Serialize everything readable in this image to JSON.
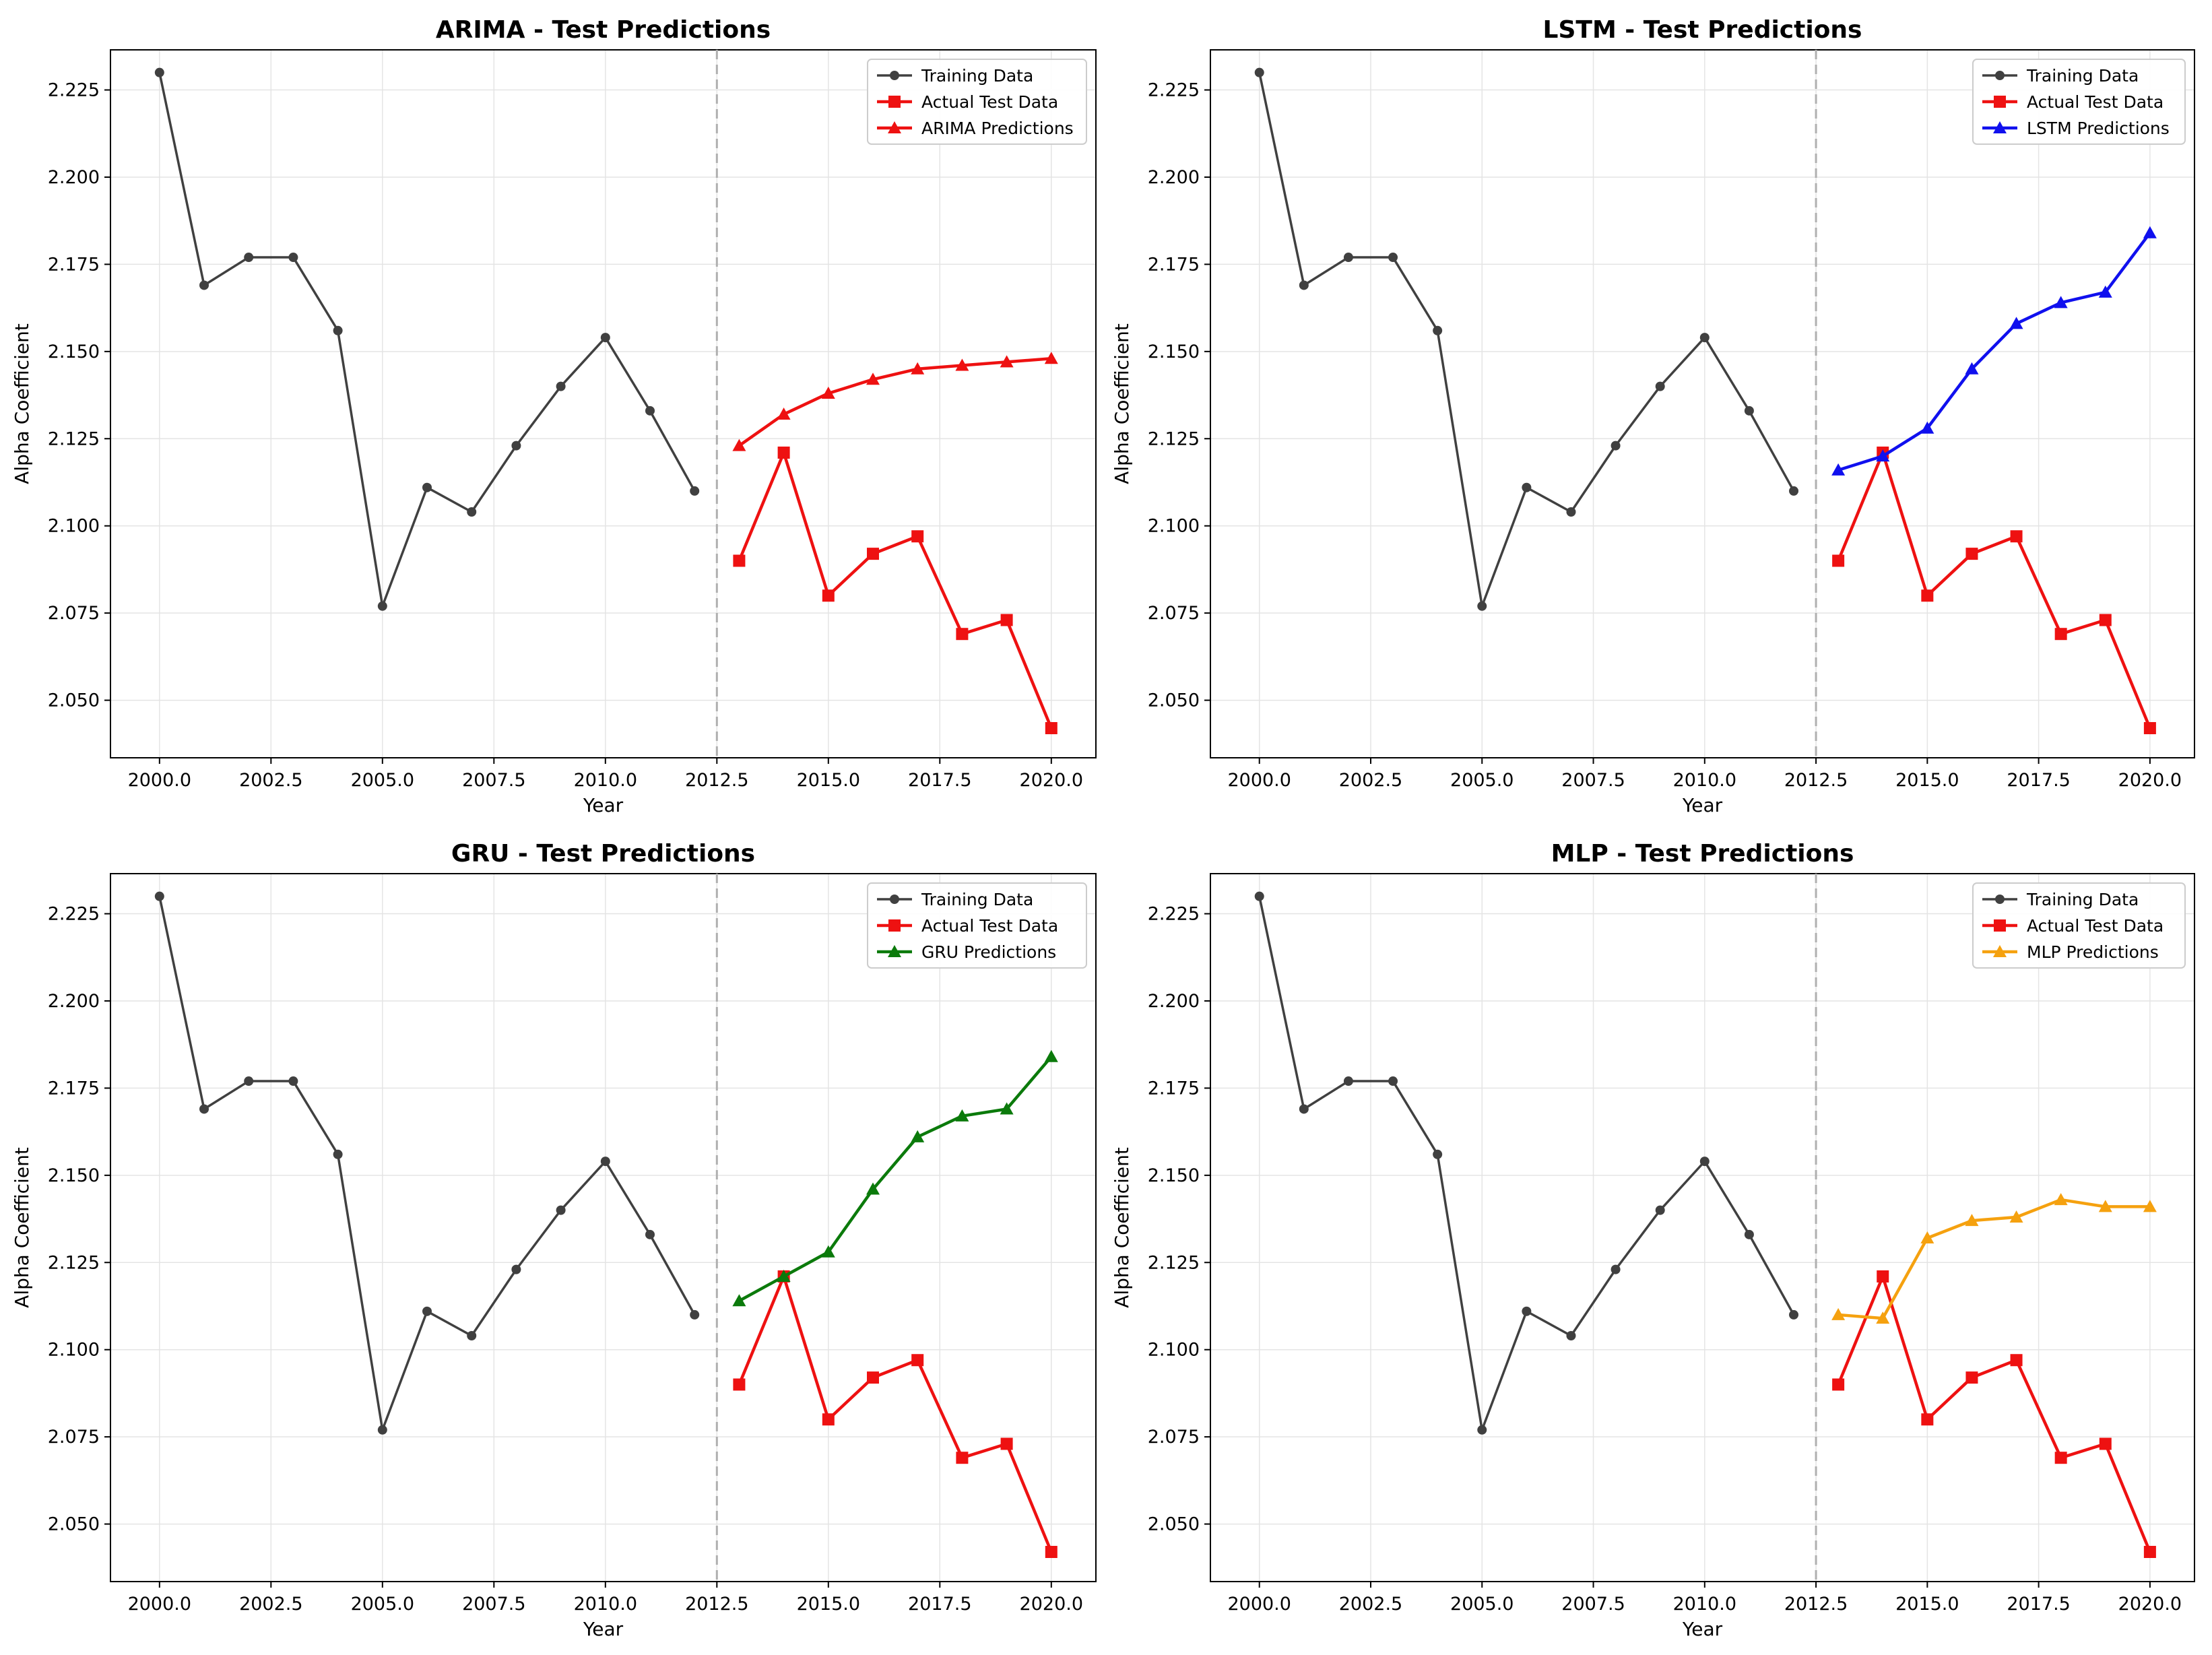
{
  "colors": {
    "training": "#404040",
    "actual": "#ee1111",
    "grid": "#e4e4e4",
    "split_line": "#b0b0b0"
  },
  "chart_data": [
    {
      "type": "line",
      "title": "ARIMA - Test Predictions",
      "xlabel": "Year",
      "ylabel": "Alpha Coefficient",
      "xlim": [
        1998.9,
        2021.0
      ],
      "ylim": [
        2.0335,
        2.2365
      ],
      "xticks": [
        "2000.0",
        "2002.5",
        "2005.0",
        "2007.5",
        "2010.0",
        "2012.5",
        "2015.0",
        "2017.5",
        "2020.0"
      ],
      "yticks": [
        "2.050",
        "2.075",
        "2.100",
        "2.125",
        "2.150",
        "2.175",
        "2.200",
        "2.225"
      ],
      "split_x": 2012.5,
      "grid": true,
      "legend_position": "top-right",
      "series": [
        {
          "name": "Training Data",
          "color": "#404040",
          "marker": "circle",
          "x": [
            2000,
            2001,
            2002,
            2003,
            2004,
            2005,
            2006,
            2007,
            2008,
            2009,
            2010,
            2011,
            2012
          ],
          "y": [
            2.23,
            2.169,
            2.177,
            2.177,
            2.156,
            2.077,
            2.111,
            2.104,
            2.123,
            2.14,
            2.154,
            2.133,
            2.11
          ]
        },
        {
          "name": "Actual Test Data",
          "color": "#ee1111",
          "marker": "square",
          "x": [
            2013,
            2014,
            2015,
            2016,
            2017,
            2018,
            2019,
            2020
          ],
          "y": [
            2.09,
            2.121,
            2.08,
            2.092,
            2.097,
            2.069,
            2.073,
            2.042
          ]
        },
        {
          "name": "ARIMA Predictions",
          "color": "#ee1111",
          "marker": "triangle",
          "x": [
            2013,
            2014,
            2015,
            2016,
            2017,
            2018,
            2019,
            2020
          ],
          "y": [
            2.123,
            2.132,
            2.138,
            2.142,
            2.145,
            2.146,
            2.147,
            2.148
          ]
        }
      ]
    },
    {
      "type": "line",
      "title": "LSTM - Test Predictions",
      "xlabel": "Year",
      "ylabel": "Alpha Coefficient",
      "xlim": [
        1998.9,
        2021.0
      ],
      "ylim": [
        2.0335,
        2.2365
      ],
      "xticks": [
        "2000.0",
        "2002.5",
        "2005.0",
        "2007.5",
        "2010.0",
        "2012.5",
        "2015.0",
        "2017.5",
        "2020.0"
      ],
      "yticks": [
        "2.050",
        "2.075",
        "2.100",
        "2.125",
        "2.150",
        "2.175",
        "2.200",
        "2.225"
      ],
      "split_x": 2012.5,
      "grid": true,
      "legend_position": "top-right",
      "series": [
        {
          "name": "Training Data",
          "color": "#404040",
          "marker": "circle",
          "x": [
            2000,
            2001,
            2002,
            2003,
            2004,
            2005,
            2006,
            2007,
            2008,
            2009,
            2010,
            2011,
            2012
          ],
          "y": [
            2.23,
            2.169,
            2.177,
            2.177,
            2.156,
            2.077,
            2.111,
            2.104,
            2.123,
            2.14,
            2.154,
            2.133,
            2.11
          ]
        },
        {
          "name": "Actual Test Data",
          "color": "#ee1111",
          "marker": "square",
          "x": [
            2013,
            2014,
            2015,
            2016,
            2017,
            2018,
            2019,
            2020
          ],
          "y": [
            2.09,
            2.121,
            2.08,
            2.092,
            2.097,
            2.069,
            2.073,
            2.042
          ]
        },
        {
          "name": "LSTM Predictions",
          "color": "#1010ee",
          "marker": "triangle",
          "x": [
            2013,
            2014,
            2015,
            2016,
            2017,
            2018,
            2019,
            2020
          ],
          "y": [
            2.116,
            2.12,
            2.128,
            2.145,
            2.158,
            2.164,
            2.167,
            2.184
          ]
        }
      ]
    },
    {
      "type": "line",
      "title": "GRU - Test Predictions",
      "xlabel": "Year",
      "ylabel": "Alpha Coefficient",
      "xlim": [
        1998.9,
        2021.0
      ],
      "ylim": [
        2.0335,
        2.2365
      ],
      "xticks": [
        "2000.0",
        "2002.5",
        "2005.0",
        "2007.5",
        "2010.0",
        "2012.5",
        "2015.0",
        "2017.5",
        "2020.0"
      ],
      "yticks": [
        "2.050",
        "2.075",
        "2.100",
        "2.125",
        "2.150",
        "2.175",
        "2.200",
        "2.225"
      ],
      "split_x": 2012.5,
      "grid": true,
      "legend_position": "top-right",
      "series": [
        {
          "name": "Training Data",
          "color": "#404040",
          "marker": "circle",
          "x": [
            2000,
            2001,
            2002,
            2003,
            2004,
            2005,
            2006,
            2007,
            2008,
            2009,
            2010,
            2011,
            2012
          ],
          "y": [
            2.23,
            2.169,
            2.177,
            2.177,
            2.156,
            2.077,
            2.111,
            2.104,
            2.123,
            2.14,
            2.154,
            2.133,
            2.11
          ]
        },
        {
          "name": "Actual Test Data",
          "color": "#ee1111",
          "marker": "square",
          "x": [
            2013,
            2014,
            2015,
            2016,
            2017,
            2018,
            2019,
            2020
          ],
          "y": [
            2.09,
            2.121,
            2.08,
            2.092,
            2.097,
            2.069,
            2.073,
            2.042
          ]
        },
        {
          "name": "GRU Predictions",
          "color": "#0b7a0b",
          "marker": "triangle",
          "x": [
            2013,
            2014,
            2015,
            2016,
            2017,
            2018,
            2019,
            2020
          ],
          "y": [
            2.114,
            2.121,
            2.128,
            2.146,
            2.161,
            2.167,
            2.169,
            2.184
          ]
        }
      ]
    },
    {
      "type": "line",
      "title": "MLP - Test Predictions",
      "xlabel": "Year",
      "ylabel": "Alpha Coefficient",
      "xlim": [
        1998.9,
        2021.0
      ],
      "ylim": [
        2.0335,
        2.2365
      ],
      "xticks": [
        "2000.0",
        "2002.5",
        "2005.0",
        "2007.5",
        "2010.0",
        "2012.5",
        "2015.0",
        "2017.5",
        "2020.0"
      ],
      "yticks": [
        "2.050",
        "2.075",
        "2.100",
        "2.125",
        "2.150",
        "2.175",
        "2.200",
        "2.225"
      ],
      "split_x": 2012.5,
      "grid": true,
      "legend_position": "top-right",
      "series": [
        {
          "name": "Training Data",
          "color": "#404040",
          "marker": "circle",
          "x": [
            2000,
            2001,
            2002,
            2003,
            2004,
            2005,
            2006,
            2007,
            2008,
            2009,
            2010,
            2011,
            2012
          ],
          "y": [
            2.23,
            2.169,
            2.177,
            2.177,
            2.156,
            2.077,
            2.111,
            2.104,
            2.123,
            2.14,
            2.154,
            2.133,
            2.11
          ]
        },
        {
          "name": "Actual Test Data",
          "color": "#ee1111",
          "marker": "square",
          "x": [
            2013,
            2014,
            2015,
            2016,
            2017,
            2018,
            2019,
            2020
          ],
          "y": [
            2.09,
            2.121,
            2.08,
            2.092,
            2.097,
            2.069,
            2.073,
            2.042
          ]
        },
        {
          "name": "MLP Predictions",
          "color": "#f5a10f",
          "marker": "triangle",
          "x": [
            2013,
            2014,
            2015,
            2016,
            2017,
            2018,
            2019,
            2020
          ],
          "y": [
            2.11,
            2.109,
            2.132,
            2.137,
            2.138,
            2.143,
            2.141,
            2.141
          ]
        }
      ]
    }
  ]
}
